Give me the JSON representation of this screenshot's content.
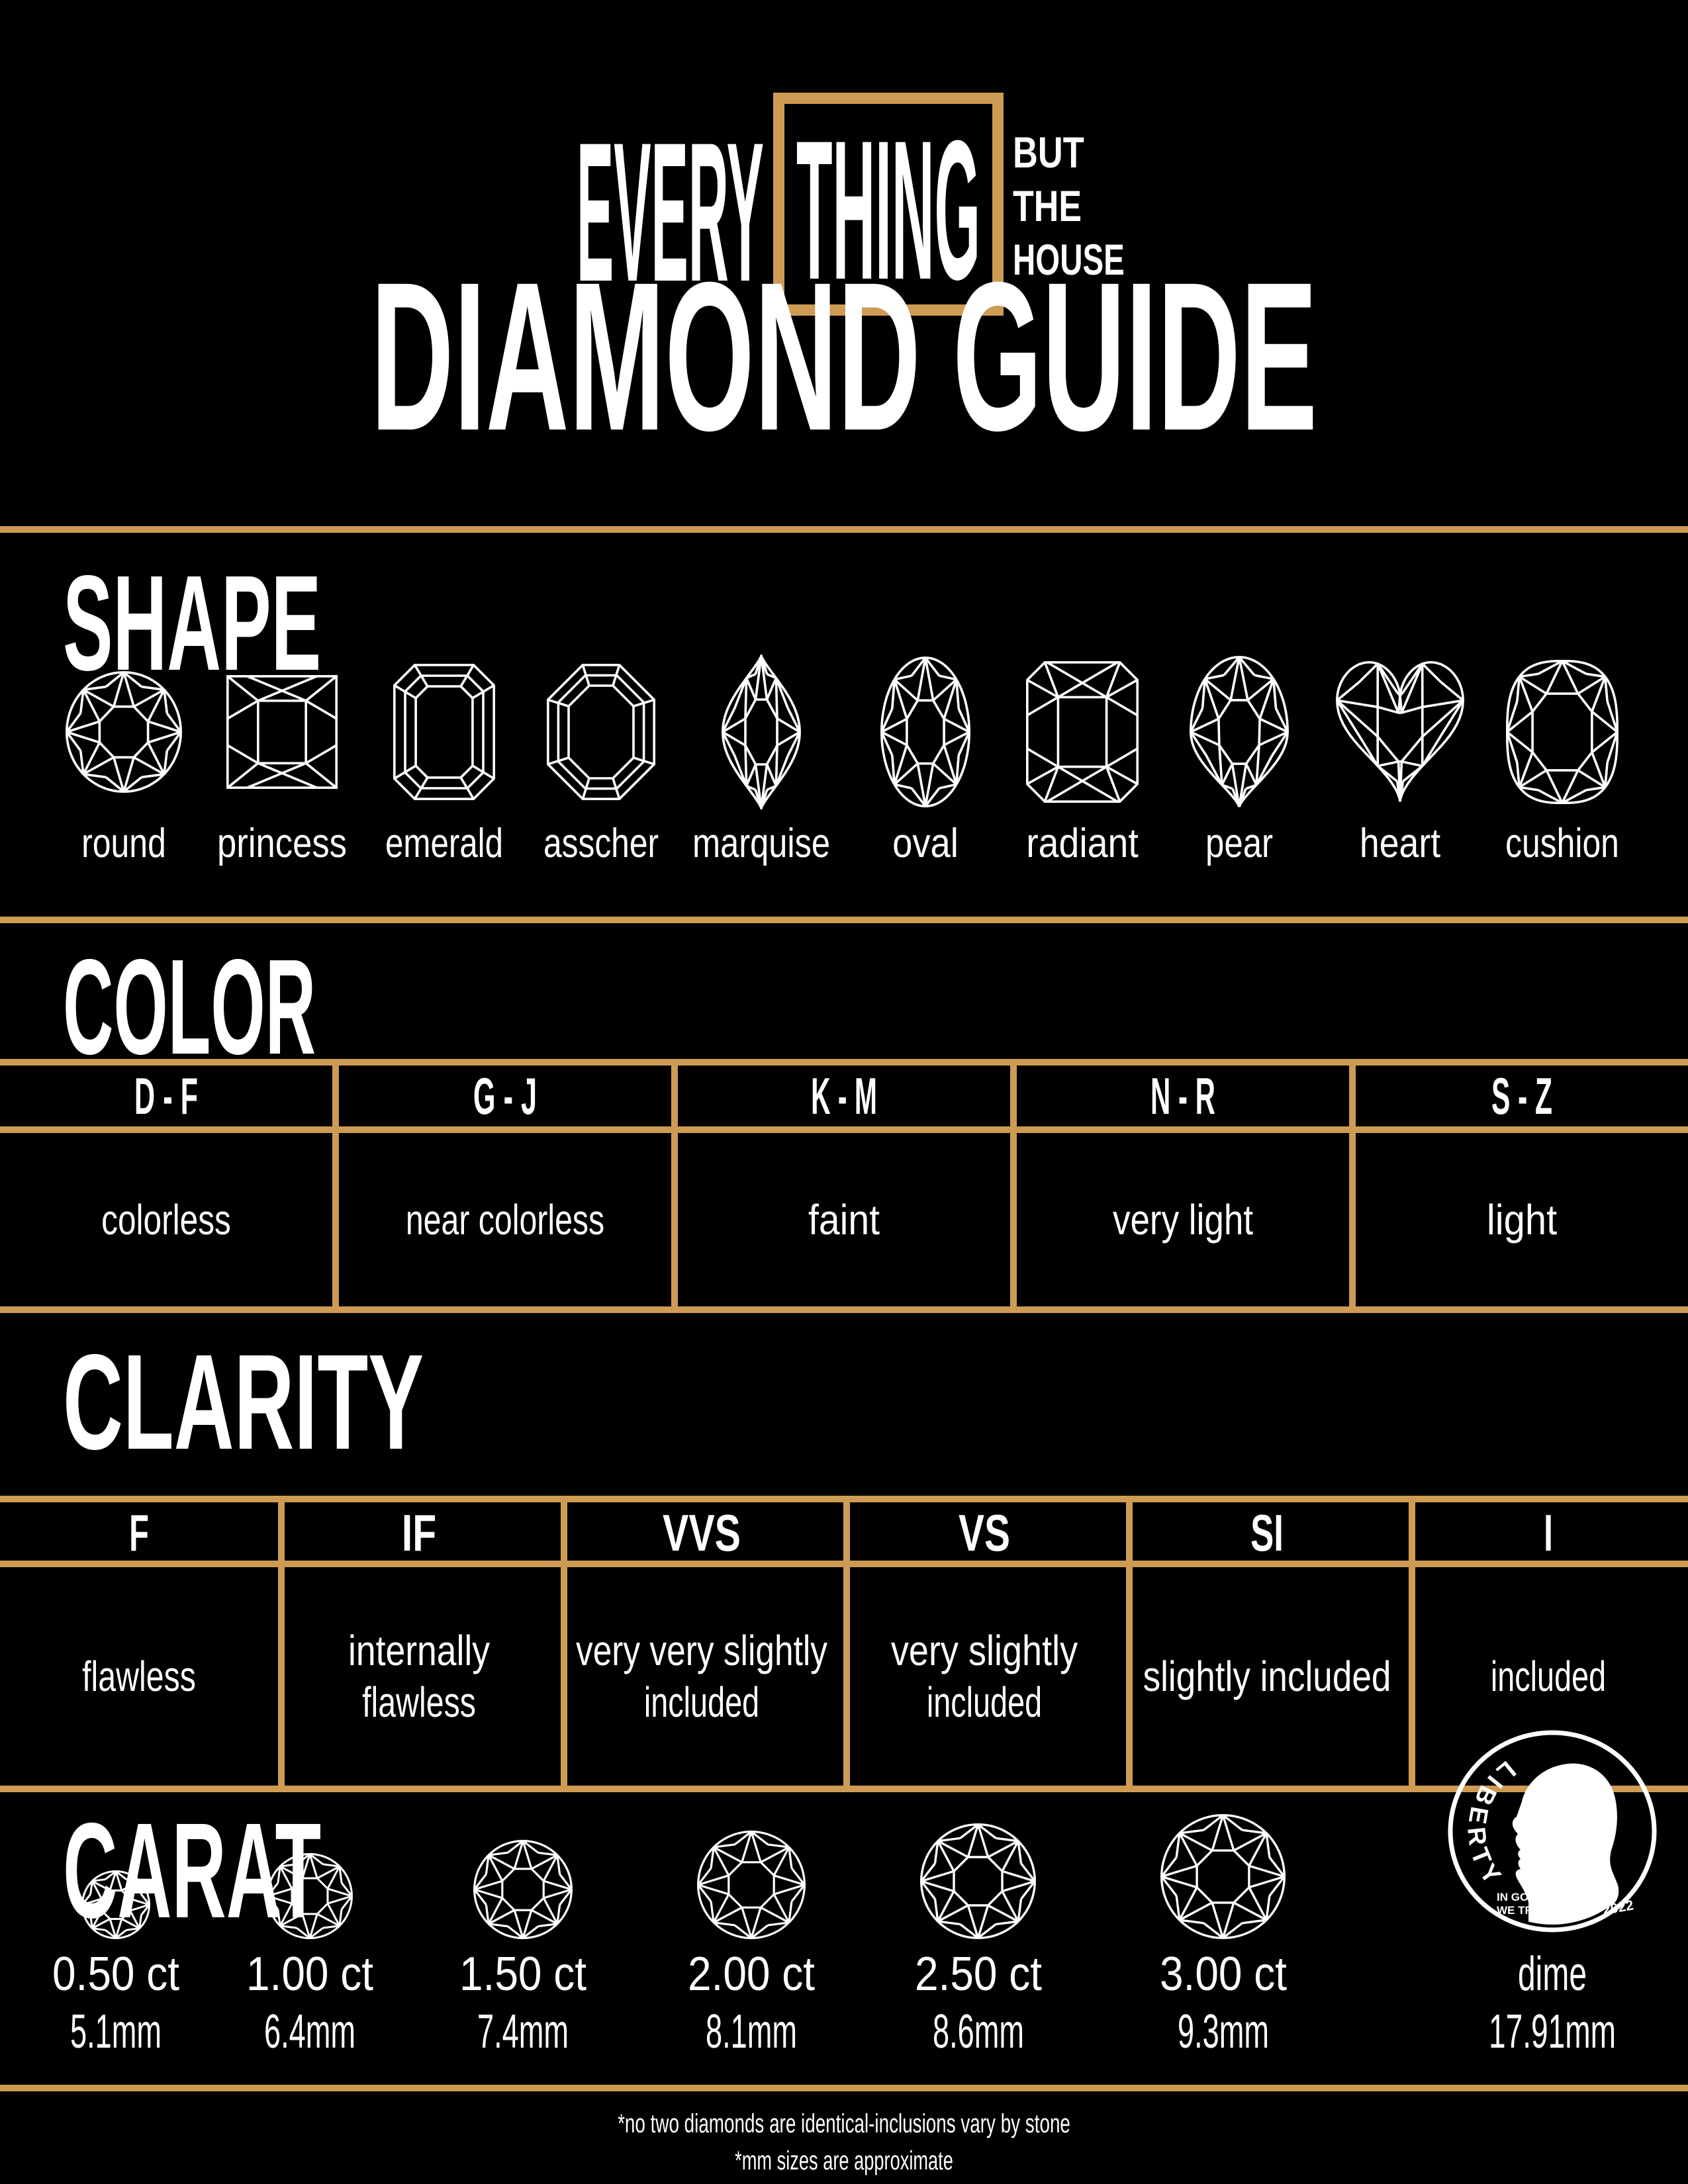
{
  "logo": {
    "word1": "EVERY",
    "word2": "THING",
    "tagline": [
      "BUT",
      "THE",
      "HOUSE"
    ]
  },
  "title": "DIAMOND GUIDE",
  "sections": {
    "shape": {
      "heading": "SHAPE",
      "items": [
        {
          "name": "round",
          "label": "round"
        },
        {
          "name": "princess",
          "label": "princess"
        },
        {
          "name": "emerald",
          "label": "emerald"
        },
        {
          "name": "asscher",
          "label": "asscher"
        },
        {
          "name": "marquise",
          "label": "marquise"
        },
        {
          "name": "oval",
          "label": "oval"
        },
        {
          "name": "radiant",
          "label": "radiant"
        },
        {
          "name": "pear",
          "label": "pear"
        },
        {
          "name": "heart",
          "label": "heart"
        },
        {
          "name": "cushion",
          "label": "cushion"
        }
      ]
    },
    "color": {
      "heading": "COLOR",
      "columns": [
        {
          "grade": "D - F",
          "desc": "colorless"
        },
        {
          "grade": "G - J",
          "desc": "near colorless"
        },
        {
          "grade": "K - M",
          "desc": "faint"
        },
        {
          "grade": "N - R",
          "desc": "very light"
        },
        {
          "grade": "S - Z",
          "desc": "light"
        }
      ]
    },
    "clarity": {
      "heading": "CLARITY",
      "columns": [
        {
          "grade": "F",
          "desc_lines": [
            "flawless"
          ]
        },
        {
          "grade": "IF",
          "desc_lines": [
            "internally",
            "flawless"
          ]
        },
        {
          "grade": "VVS",
          "desc_lines": [
            "very very slightly",
            "included"
          ]
        },
        {
          "grade": "VS",
          "desc_lines": [
            "very slightly",
            "included"
          ]
        },
        {
          "grade": "SI",
          "desc_lines": [
            "slightly included"
          ]
        },
        {
          "grade": "I",
          "desc_lines": [
            "included"
          ]
        }
      ]
    },
    "carat": {
      "heading": "CARAT",
      "stones": [
        {
          "carat": "0.50 ct",
          "mm": "5.1mm"
        },
        {
          "carat": "1.00 ct",
          "mm": "6.4mm"
        },
        {
          "carat": "1.50 ct",
          "mm": "7.4mm"
        },
        {
          "carat": "2.00 ct",
          "mm": "8.1mm"
        },
        {
          "carat": "2.50 ct",
          "mm": "8.6mm"
        },
        {
          "carat": "3.00 ct",
          "mm": "9.3mm"
        }
      ],
      "coin": {
        "label": "dime",
        "mm": "17.91mm",
        "liberty": "LIBERTY",
        "motto_line1": "IN GOD",
        "motto_line2": "WE TRUST",
        "year": "2022"
      }
    }
  },
  "footnotes": [
    "*no two diamonds are identical-inclusions vary by stone",
    "*mm sizes are approximate"
  ],
  "colors": {
    "gold": "#CE9B55",
    "white": "#FFFFFF",
    "background": "#000000"
  }
}
